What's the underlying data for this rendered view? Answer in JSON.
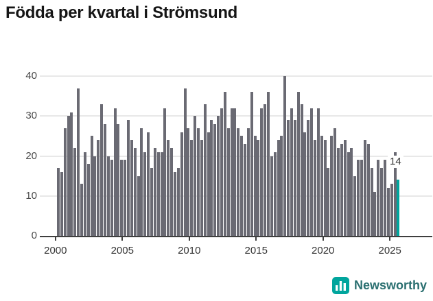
{
  "title": "Födda per kvartal i Strömsund",
  "colors": {
    "bar": "#6a6a73",
    "highlight": "#00a59d",
    "grid": "#e8e8e8",
    "axis": "#3f3f3f",
    "annotation_text": "#3a3a3a",
    "brand": "#00a59d"
  },
  "chart_data": {
    "type": "bar",
    "title": "Födda per kvartal i Strömsund",
    "xlabel": "",
    "ylabel": "",
    "ylim": [
      0,
      40
    ],
    "grid": "horizontal",
    "legend": "none",
    "yticks": [
      0,
      10,
      20,
      30,
      40
    ],
    "xticks": [
      2000,
      2005,
      2010,
      2015,
      2020,
      2025
    ],
    "highlight_last": true,
    "last_value_label": "14",
    "categories": [
      "2000-Q1",
      "2000-Q2",
      "2000-Q3",
      "2000-Q4",
      "2001-Q1",
      "2001-Q2",
      "2001-Q3",
      "2001-Q4",
      "2002-Q1",
      "2002-Q2",
      "2002-Q3",
      "2002-Q4",
      "2003-Q1",
      "2003-Q2",
      "2003-Q3",
      "2003-Q4",
      "2004-Q1",
      "2004-Q2",
      "2004-Q3",
      "2004-Q4",
      "2005-Q1",
      "2005-Q2",
      "2005-Q3",
      "2005-Q4",
      "2006-Q1",
      "2006-Q2",
      "2006-Q3",
      "2006-Q4",
      "2007-Q1",
      "2007-Q2",
      "2007-Q3",
      "2007-Q4",
      "2008-Q1",
      "2008-Q2",
      "2008-Q3",
      "2008-Q4",
      "2009-Q1",
      "2009-Q2",
      "2009-Q3",
      "2009-Q4",
      "2010-Q1",
      "2010-Q2",
      "2010-Q3",
      "2010-Q4",
      "2011-Q1",
      "2011-Q2",
      "2011-Q3",
      "2011-Q4",
      "2012-Q1",
      "2012-Q2",
      "2012-Q3",
      "2012-Q4",
      "2013-Q1",
      "2013-Q2",
      "2013-Q3",
      "2013-Q4",
      "2014-Q1",
      "2014-Q2",
      "2014-Q3",
      "2014-Q4",
      "2015-Q1",
      "2015-Q2",
      "2015-Q3",
      "2015-Q4",
      "2016-Q1",
      "2016-Q2",
      "2016-Q3",
      "2016-Q4",
      "2017-Q1",
      "2017-Q2",
      "2017-Q3",
      "2017-Q4",
      "2018-Q1",
      "2018-Q2",
      "2018-Q3",
      "2018-Q4",
      "2019-Q1",
      "2019-Q2",
      "2019-Q3",
      "2019-Q4",
      "2020-Q1",
      "2020-Q2",
      "2020-Q3",
      "2020-Q4",
      "2021-Q1",
      "2021-Q2",
      "2021-Q3",
      "2021-Q4",
      "2022-Q1",
      "2022-Q2",
      "2022-Q3",
      "2022-Q4",
      "2023-Q1",
      "2023-Q2",
      "2023-Q3",
      "2023-Q4",
      "2024-Q1",
      "2024-Q2",
      "2024-Q3",
      "2024-Q4",
      "2025-Q1",
      "2025-Q2",
      "2025-Q3"
    ],
    "values": [
      17,
      16,
      27,
      30,
      31,
      22,
      37,
      13,
      21,
      18,
      25,
      20,
      24,
      33,
      28,
      20,
      19,
      32,
      28,
      19,
      19,
      29,
      24,
      22,
      15,
      27,
      21,
      26,
      17,
      22,
      21,
      21,
      32,
      24,
      22,
      16,
      17,
      26,
      37,
      27,
      24,
      30,
      27,
      24,
      33,
      26,
      29,
      28,
      30,
      32,
      36,
      27,
      32,
      32,
      27,
      25,
      23,
      27,
      36,
      25,
      24,
      32,
      33,
      36,
      20,
      21,
      24,
      25,
      40,
      29,
      32,
      29,
      36,
      33,
      26,
      29,
      32,
      24,
      32,
      25,
      24,
      17,
      25,
      27,
      22,
      23,
      24,
      21,
      22,
      15,
      19,
      19,
      24,
      23,
      17,
      11,
      19,
      17,
      19,
      12,
      13,
      21,
      14
    ]
  },
  "branding": {
    "name": "Newsworthy",
    "icon": "bar-chart-logo-icon"
  }
}
